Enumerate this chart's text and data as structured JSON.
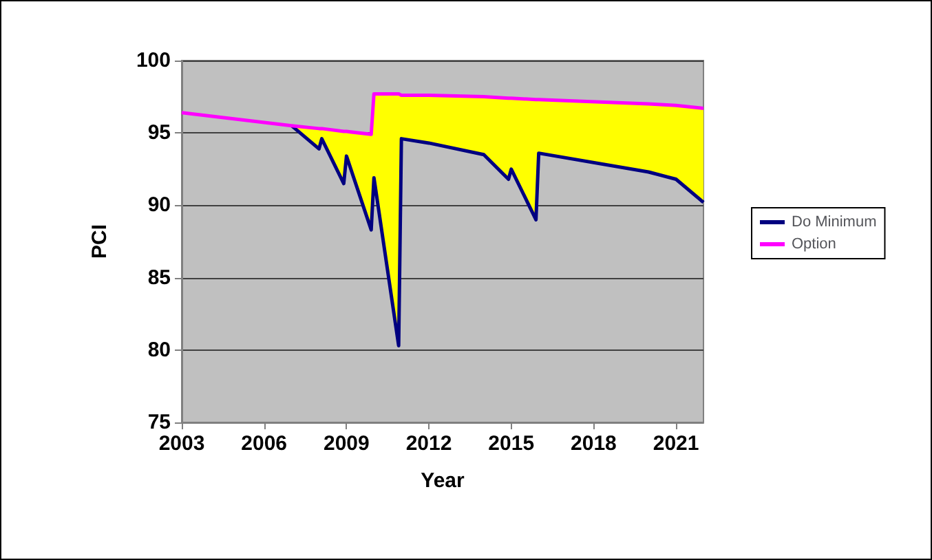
{
  "chart_data": {
    "type": "line",
    "xlabel": "Year",
    "ylabel": "PCI",
    "x": [
      2003,
      2007,
      2008,
      2008.1,
      2008.9,
      2009,
      2009.9,
      2010,
      2010.9,
      2011,
      2012,
      2014,
      2014.9,
      2015,
      2015.9,
      2016,
      2020,
      2021,
      2022
    ],
    "series": [
      {
        "name": "Do Minimum",
        "color": "#000080",
        "values": [
          null,
          95.5,
          93.9,
          94.6,
          91.5,
          93.4,
          88.3,
          91.9,
          80.3,
          94.6,
          94.3,
          93.5,
          91.8,
          92.5,
          89.0,
          93.6,
          92.3,
          91.8,
          90.2
        ]
      },
      {
        "name": "Option",
        "color": "#ff00ff",
        "values": [
          96.4,
          95.5,
          95.3,
          95.3,
          95.1,
          95.1,
          94.9,
          97.7,
          97.7,
          97.6,
          97.6,
          97.5,
          97.4,
          97.4,
          97.3,
          97.3,
          97.0,
          96.9,
          96.7
        ],
        "lower": [
          null,
          95.5,
          93.9,
          94.6,
          91.5,
          93.4,
          88.3,
          91.9,
          80.3,
          94.6,
          94.3,
          93.5,
          91.8,
          92.5,
          89.0,
          93.6,
          92.3,
          91.8,
          90.2
        ],
        "upper": [
          null,
          95.5,
          95.3,
          95.3,
          95.1,
          95.1,
          94.9,
          97.7,
          97.7,
          97.6,
          97.6,
          97.5,
          97.4,
          97.4,
          97.3,
          97.3,
          97.0,
          96.9,
          96.7
        ]
      }
    ],
    "xlim": [
      2003,
      2022
    ],
    "xticks": [
      2003,
      2006,
      2009,
      2012,
      2015,
      2018,
      2021
    ],
    "ylim": [
      75,
      100
    ],
    "yticks": [
      75,
      80,
      85,
      90,
      95,
      100
    ],
    "grid": "y",
    "legend": "right",
    "marker": "none",
    "line_style": "solid"
  }
}
